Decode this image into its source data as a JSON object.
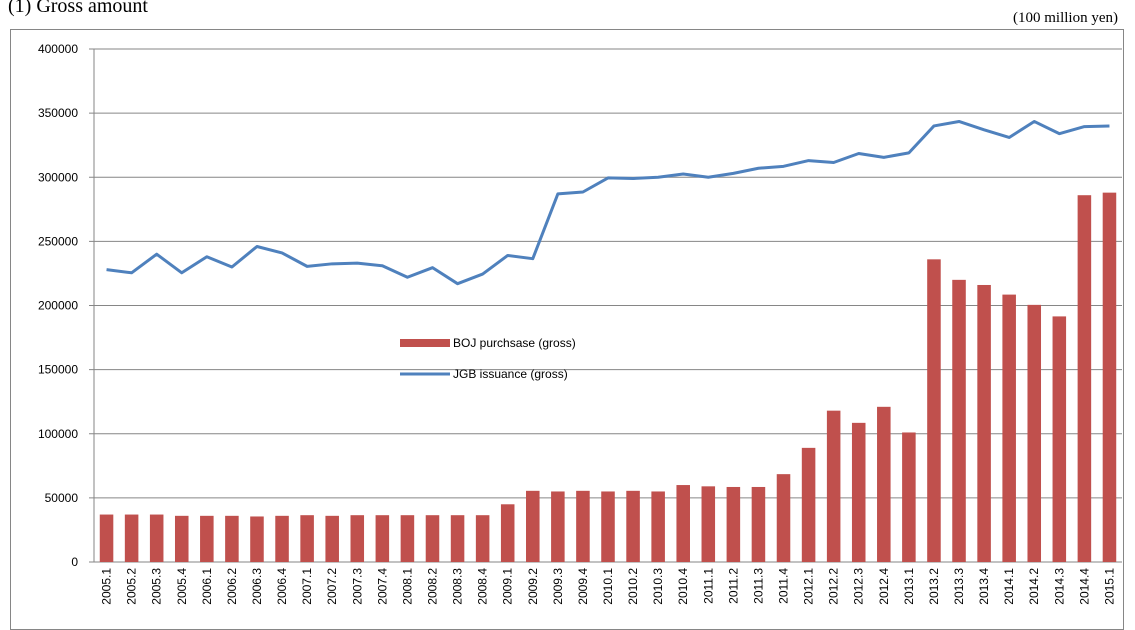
{
  "chart_data": {
    "type": "bar",
    "title": "(1)  Gross amount",
    "unit_label": "(100 million yen)",
    "categories": [
      "2005.1",
      "2005.2",
      "2005.3",
      "2005.4",
      "2006.1",
      "2006.2",
      "2006.3",
      "2006.4",
      "2007.1",
      "2007.2",
      "2007.3",
      "2007.4",
      "2008.1",
      "2008.2",
      "2008.3",
      "2008.4",
      "2009.1",
      "2009.2",
      "2009.3",
      "2009.4",
      "2010.1",
      "2010.2",
      "2010.3",
      "2010.4",
      "2011.1",
      "2011.2",
      "2011.3",
      "2011.4",
      "2012.1",
      "2012.2",
      "2012.3",
      "2012.4",
      "2013.1",
      "2013.2",
      "2013.3",
      "2013.4",
      "2014.1",
      "2014.2",
      "2014.3",
      "2014.4",
      "2015.1"
    ],
    "series": [
      {
        "name": "BOJ purchsase (gross)",
        "type": "bar",
        "color": "#c0504d",
        "values": [
          37000,
          37000,
          37000,
          36000,
          36000,
          36000,
          35500,
          36000,
          36500,
          36000,
          36500,
          36500,
          36500,
          36500,
          36500,
          36500,
          45000,
          55500,
          55000,
          55500,
          55000,
          55500,
          55000,
          60000,
          59000,
          58500,
          58500,
          68500,
          89000,
          118000,
          108500,
          121000,
          101000,
          236000,
          220000,
          216000,
          208500,
          200500,
          191500,
          286000,
          288000
        ]
      },
      {
        "name": "JGB issuance (gross)",
        "type": "line",
        "color": "#4f81bd",
        "values": [
          228000,
          225500,
          240000,
          225500,
          238000,
          230000,
          246000,
          241000,
          230500,
          232500,
          233000,
          231000,
          222000,
          229500,
          217000,
          224500,
          239000,
          236500,
          287000,
          288500,
          299500,
          299000,
          300000,
          302500,
          300000,
          303000,
          307000,
          308500,
          313000,
          311500,
          318500,
          315500,
          319000,
          340000,
          343500,
          337000,
          331000,
          343500,
          334000,
          339500,
          340000
        ]
      }
    ],
    "ylim": [
      0,
      400000
    ],
    "yticks": [
      0,
      50000,
      100000,
      150000,
      200000,
      250000,
      300000,
      350000,
      400000
    ],
    "grid": true
  }
}
